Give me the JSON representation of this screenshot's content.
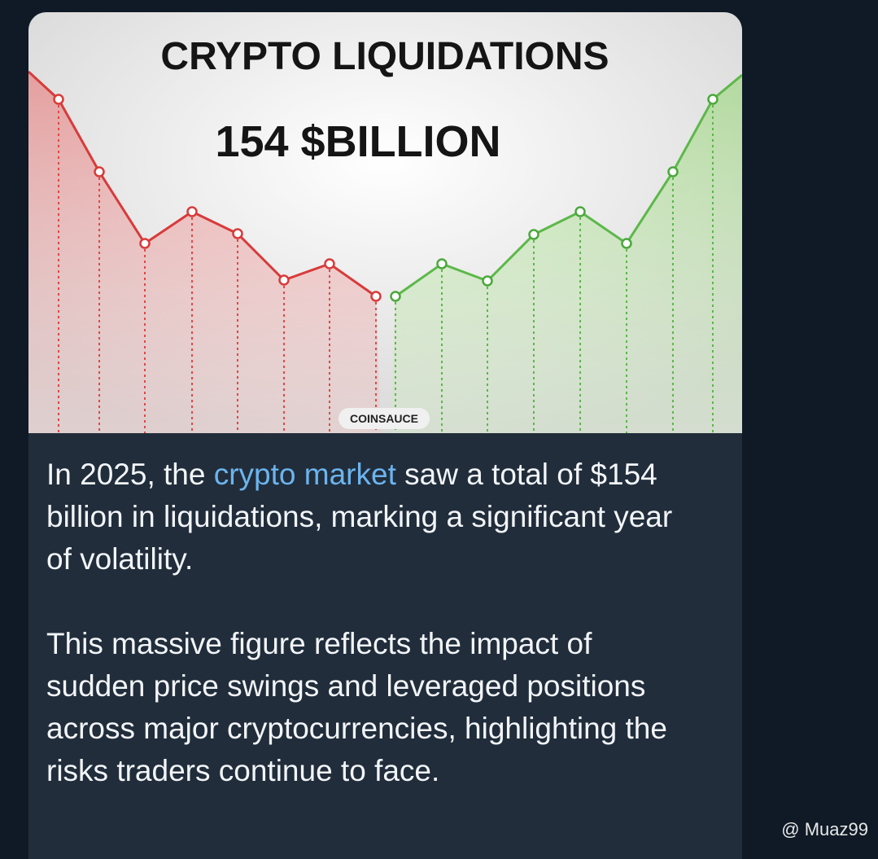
{
  "image": {
    "title": "CRYPTO LIQUIDATIONS",
    "subtitle": "154 $BILLION",
    "watermark": "COINSAUCE"
  },
  "message": {
    "paragraph_1": {
      "before_link": "In 2025, the ",
      "link": "crypto market",
      "after_link": " saw a total of $154 billion in liquidations, marking a significant year of volatility."
    },
    "paragraph_2": "This massive figure reflects the impact of sudden price swings and leveraged positions across major cryptocurrencies, highlighting the risks traders continue to face."
  },
  "footer": {
    "credit": "@ Muaz99"
  }
}
